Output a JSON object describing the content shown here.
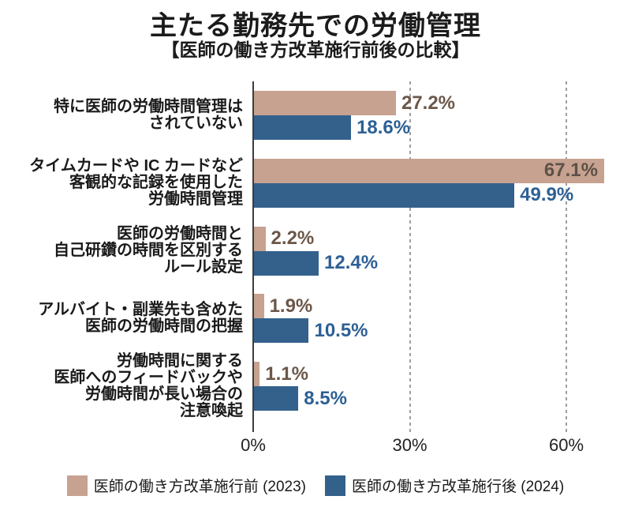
{
  "chart_data": {
    "type": "bar",
    "orientation": "horizontal",
    "title": "主たる勤務先での労働管理",
    "subtitle": "【医師の働き方改革施行前後の比較】",
    "categories": [
      "特に医師の労働時間管理は\nされていない",
      "タイムカードや IC カードなど\n客観的な記録を使用した\n労働時間管理",
      "医師の労働時間と\n自己研鑽の時間を区別する\nルール設定",
      "アルバイト・副業先も含めた\n医師の労働時間の把握",
      "労働時間に関する\n医師へのフィードバックや\n労働時間が長い場合の\n注意喚起"
    ],
    "series": [
      {
        "name": "医師の働き方改革施行前 (2023)",
        "color": "#c7a290",
        "label_color": "#6b5749",
        "label_color_inside": "#5d5147",
        "values": [
          27.2,
          67.1,
          2.2,
          1.9,
          1.1
        ]
      },
      {
        "name": "医師の働き方改革施行後 (2024)",
        "color": "#33618c",
        "label_color": "#2d6094",
        "label_color_inside": "#ffffff",
        "values": [
          18.6,
          49.9,
          12.4,
          10.5,
          8.5
        ]
      }
    ],
    "x_ticks": [
      {
        "label": "0%",
        "value": 0
      },
      {
        "label": "30%",
        "value": 30
      },
      {
        "label": "60%",
        "value": 60
      }
    ],
    "xlim": [
      0,
      66
    ],
    "grid": "vertical-dashed",
    "legend_position": "bottom"
  }
}
